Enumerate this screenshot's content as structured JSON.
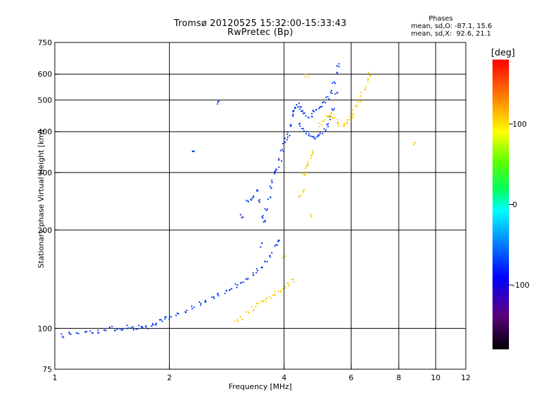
{
  "title_line1": "Tromsø 20120525 15:32:00-15:33:43",
  "title_line2": "RwPretec (Bp)",
  "phases": {
    "heading": "Phases",
    "line1": "mean, sd,O: -87.1, 15.6",
    "line2": "mean, sd,X:  92.6, 21.1"
  },
  "colorbar": {
    "unit": "[deg]",
    "ticks": [
      "100",
      "0",
      "-100"
    ],
    "tick_values": [
      100,
      0,
      -100
    ],
    "range": [
      -180,
      180
    ]
  },
  "chart_data": {
    "type": "scatter",
    "xlabel": "Frequency [MHz]",
    "ylabel": "Stationary phase Virtual Height [km]",
    "x_scale": "log",
    "y_scale": "log",
    "xlim": [
      1,
      12
    ],
    "ylim": [
      75,
      750
    ],
    "x_ticks": [
      1,
      2,
      4,
      6,
      8,
      10,
      12
    ],
    "y_ticks": [
      75,
      100,
      200,
      300,
      400,
      500,
      600,
      750
    ],
    "x_grid": [
      2,
      4,
      6,
      8,
      10
    ],
    "y_grid": [
      100,
      200,
      300,
      400,
      500,
      600
    ],
    "series": [
      {
        "mode": "O",
        "color_value": -100,
        "points": [
          [
            1.0,
            96
          ],
          [
            1.05,
            95
          ],
          [
            1.1,
            96
          ],
          [
            1.15,
            97
          ],
          [
            1.2,
            98
          ],
          [
            1.25,
            97
          ],
          [
            1.3,
            98
          ],
          [
            1.35,
            99
          ],
          [
            1.4,
            100
          ],
          [
            1.45,
            99
          ],
          [
            1.5,
            100
          ],
          [
            1.55,
            101
          ],
          [
            1.6,
            100
          ],
          [
            1.65,
            101
          ],
          [
            1.7,
            102
          ],
          [
            1.75,
            101
          ],
          [
            1.8,
            103
          ],
          [
            1.85,
            104
          ],
          [
            1.9,
            105
          ],
          [
            1.95,
            107
          ],
          [
            2.0,
            108
          ],
          [
            2.1,
            110
          ],
          [
            2.2,
            113
          ],
          [
            2.3,
            116
          ],
          [
            2.4,
            119
          ],
          [
            2.5,
            122
          ],
          [
            2.6,
            125
          ],
          [
            2.7,
            127
          ],
          [
            2.8,
            129
          ],
          [
            2.9,
            132
          ],
          [
            3.0,
            135
          ],
          [
            3.1,
            138
          ],
          [
            3.2,
            142
          ],
          [
            3.3,
            146
          ],
          [
            3.4,
            150
          ],
          [
            3.5,
            155
          ],
          [
            3.6,
            160
          ],
          [
            3.7,
            168
          ],
          [
            3.8,
            178
          ],
          [
            3.85,
            185
          ],
          [
            3.3,
            250
          ],
          [
            3.35,
            255
          ],
          [
            3.4,
            265
          ],
          [
            3.45,
            245
          ],
          [
            3.5,
            220
          ],
          [
            3.55,
            215
          ],
          [
            3.6,
            230
          ],
          [
            3.65,
            250
          ],
          [
            3.7,
            270
          ],
          [
            3.75,
            280
          ],
          [
            3.8,
            300
          ],
          [
            3.85,
            310
          ],
          [
            3.9,
            330
          ],
          [
            3.95,
            350
          ],
          [
            4.0,
            370
          ],
          [
            4.05,
            380
          ],
          [
            4.1,
            395
          ],
          [
            4.15,
            420
          ],
          [
            4.2,
            445
          ],
          [
            4.25,
            465
          ],
          [
            4.3,
            478
          ],
          [
            4.35,
            482
          ],
          [
            4.4,
            475
          ],
          [
            4.45,
            460
          ],
          [
            4.5,
            450
          ],
          [
            4.6,
            445
          ],
          [
            4.7,
            450
          ],
          [
            4.8,
            460
          ],
          [
            4.9,
            470
          ],
          [
            5.0,
            480
          ],
          [
            5.1,
            495
          ],
          [
            5.2,
            510
          ],
          [
            5.3,
            530
          ],
          [
            5.4,
            560
          ],
          [
            5.5,
            610
          ],
          [
            5.55,
            640
          ],
          [
            4.4,
            420
          ],
          [
            4.5,
            405
          ],
          [
            4.6,
            395
          ],
          [
            4.7,
            390
          ],
          [
            4.8,
            385
          ],
          [
            4.9,
            388
          ],
          [
            5.0,
            395
          ],
          [
            5.1,
            405
          ],
          [
            5.2,
            420
          ],
          [
            5.3,
            440
          ],
          [
            5.4,
            470
          ],
          [
            5.5,
            520
          ],
          [
            3.2,
            245
          ],
          [
            3.1,
            220
          ],
          [
            2.7,
            490
          ],
          [
            2.3,
            345
          ],
          [
            3.5,
            180
          ]
        ]
      },
      {
        "mode": "X",
        "color_value": 90,
        "points": [
          [
            3.0,
            106
          ],
          [
            3.1,
            108
          ],
          [
            3.2,
            112
          ],
          [
            3.3,
            115
          ],
          [
            3.4,
            118
          ],
          [
            3.5,
            120
          ],
          [
            3.6,
            122
          ],
          [
            3.7,
            125
          ],
          [
            3.8,
            128
          ],
          [
            3.9,
            130
          ],
          [
            4.0,
            133
          ],
          [
            4.1,
            136
          ],
          [
            4.2,
            140
          ],
          [
            4.5,
            295
          ],
          [
            4.55,
            300
          ],
          [
            4.6,
            310
          ],
          [
            4.65,
            320
          ],
          [
            4.7,
            335
          ],
          [
            4.75,
            345
          ],
          [
            5.0,
            420
          ],
          [
            5.1,
            435
          ],
          [
            5.2,
            445
          ],
          [
            5.3,
            450
          ],
          [
            5.4,
            440
          ],
          [
            5.5,
            430
          ],
          [
            5.6,
            420
          ],
          [
            5.7,
            415
          ],
          [
            5.8,
            420
          ],
          [
            5.9,
            430
          ],
          [
            6.0,
            445
          ],
          [
            6.1,
            460
          ],
          [
            6.2,
            480
          ],
          [
            6.3,
            500
          ],
          [
            6.4,
            520
          ],
          [
            6.5,
            545
          ],
          [
            6.6,
            575
          ],
          [
            6.7,
            600
          ],
          [
            4.4,
            255
          ],
          [
            4.5,
            265
          ],
          [
            4.7,
            220
          ],
          [
            4.0,
            165
          ],
          [
            4.6,
            590
          ],
          [
            8.8,
            370
          ]
        ]
      }
    ]
  }
}
